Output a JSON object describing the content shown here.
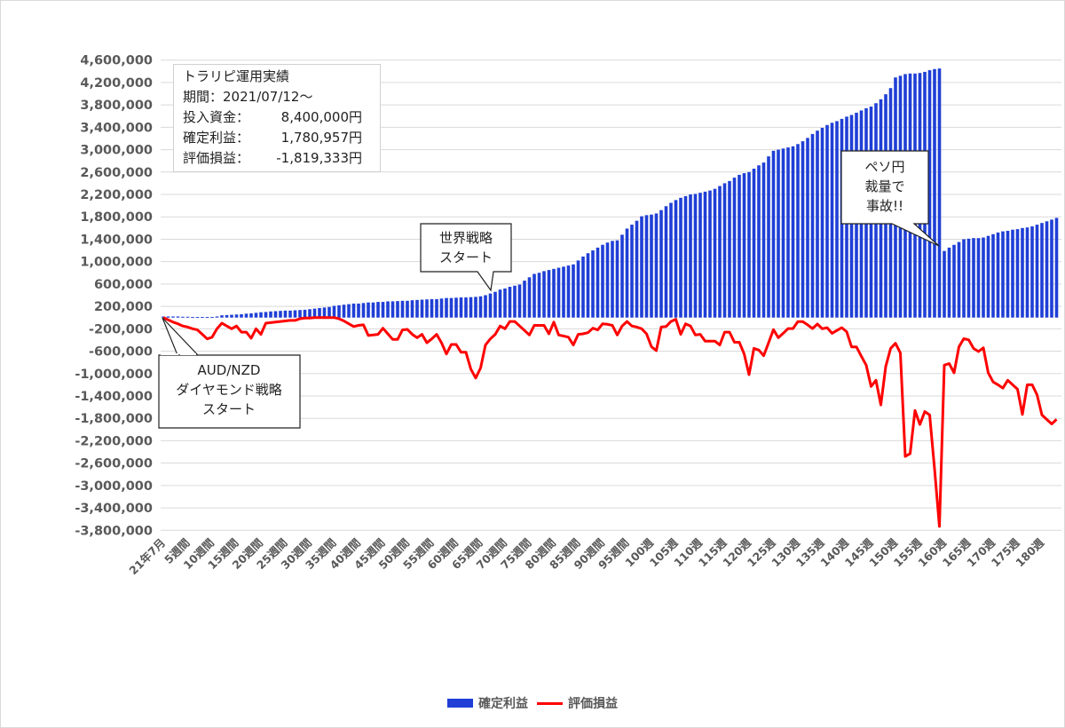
{
  "info_box": {
    "title": "トラリピ運用実績",
    "period_label": "期間：",
    "period_value": "2021/07/12～",
    "rows": [
      {
        "label": "投入資金：",
        "value": "8,400,000円"
      },
      {
        "label": "確定利益：",
        "value": "1,780,957円"
      },
      {
        "label": "評価損益：",
        "value": "-1,819,333円"
      }
    ]
  },
  "annotations": [
    {
      "lines": [
        "AUD/NZD",
        "ダイヤモンド戦略",
        "スタート"
      ]
    },
    {
      "lines": [
        "世界戦略",
        "スタート"
      ]
    },
    {
      "lines": [
        "ペソ円",
        "裁量で",
        "事故!!"
      ]
    }
  ],
  "colors": {
    "confirmed": "#1f3fd6",
    "unrealized": "#ff0000",
    "grid": "#d9d9d9"
  },
  "chart_data": {
    "type": "bar+line",
    "title": "",
    "xlabel": "",
    "ylabel": "",
    "ylim": [
      -3800000,
      4600000
    ],
    "y_ticks": [
      "4,600,000",
      "4,200,000",
      "3,800,000",
      "3,400,000",
      "3,000,000",
      "2,600,000",
      "2,200,000",
      "1,800,000",
      "1,400,000",
      "1,000,000",
      "600,000",
      "200,000",
      "-200,000",
      "-600,000",
      "-1,000,000",
      "-1,400,000",
      "-1,800,000",
      "-2,200,000",
      "-2,600,000",
      "-3,000,000",
      "-3,400,000",
      "-3,800,000"
    ],
    "y_tick_values": [
      4600000,
      4200000,
      3800000,
      3400000,
      3000000,
      2600000,
      2200000,
      1800000,
      1400000,
      1000000,
      600000,
      200000,
      -200000,
      -600000,
      -1000000,
      -1400000,
      -1800000,
      -2200000,
      -2600000,
      -3000000,
      -3400000,
      -3800000
    ],
    "grid": true,
    "x_tick_labels": [
      "21年7月",
      "5週間",
      "10週間",
      "15週間",
      "20週間",
      "25週間",
      "30週間",
      "35週間",
      "40週間",
      "45週間",
      "50週間",
      "55週間",
      "60週間",
      "65週間",
      "70週間",
      "75週間",
      "80週間",
      "85週間",
      "90週間",
      "95週間",
      "100週",
      "105週",
      "110週",
      "115週",
      "120週",
      "125週",
      "130週",
      "135週",
      "140週",
      "145週",
      "150週",
      "155週",
      "160週",
      "165週",
      "170週",
      "175週",
      "180週"
    ],
    "x_tick_every": 5,
    "legend_position": "bottom",
    "series": [
      {
        "name": "確定利益",
        "type": "bar",
        "values": [
          20000,
          20000,
          20000,
          20000,
          15000,
          15000,
          10000,
          10000,
          10000,
          10000,
          10000,
          20000,
          40000,
          45000,
          50000,
          55000,
          60000,
          70000,
          75000,
          85000,
          95000,
          100000,
          110000,
          115000,
          120000,
          125000,
          125000,
          130000,
          135000,
          140000,
          150000,
          160000,
          170000,
          180000,
          190000,
          210000,
          220000,
          230000,
          240000,
          250000,
          250000,
          260000,
          270000,
          270000,
          280000,
          280000,
          290000,
          290000,
          295000,
          300000,
          300000,
          310000,
          315000,
          320000,
          325000,
          330000,
          330000,
          340000,
          350000,
          350000,
          355000,
          360000,
          360000,
          365000,
          370000,
          380000,
          400000,
          430000,
          460000,
          500000,
          520000,
          550000,
          570000,
          590000,
          660000,
          720000,
          780000,
          800000,
          830000,
          850000,
          870000,
          890000,
          910000,
          930000,
          950000,
          1020000,
          1090000,
          1150000,
          1200000,
          1250000,
          1300000,
          1340000,
          1370000,
          1380000,
          1480000,
          1590000,
          1660000,
          1730000,
          1810000,
          1830000,
          1840000,
          1860000,
          1920000,
          1990000,
          2050000,
          2100000,
          2140000,
          2170000,
          2200000,
          2210000,
          2230000,
          2250000,
          2270000,
          2300000,
          2350000,
          2400000,
          2440000,
          2500000,
          2550000,
          2580000,
          2600000,
          2660000,
          2720000,
          2770000,
          2880000,
          2980000,
          3000000,
          3020000,
          3040000,
          3060000,
          3100000,
          3150000,
          3210000,
          3280000,
          3340000,
          3390000,
          3440000,
          3480000,
          3510000,
          3550000,
          3590000,
          3620000,
          3660000,
          3700000,
          3740000,
          3770000,
          3830000,
          3900000,
          3990000,
          4100000,
          4290000,
          4320000,
          4350000,
          4360000,
          4360000,
          4370000,
          4390000,
          4420000,
          4440000,
          4450000,
          1190000,
          1250000,
          1300000,
          1350000,
          1400000,
          1410000,
          1420000,
          1420000,
          1430000,
          1460000,
          1490000,
          1520000,
          1540000,
          1550000,
          1570000,
          1580000,
          1600000,
          1610000,
          1630000,
          1660000,
          1690000,
          1720000,
          1750000,
          1780957
        ]
      },
      {
        "name": "評価損益",
        "type": "line",
        "values": [
          0,
          -40000,
          -80000,
          -110000,
          -150000,
          -170000,
          -200000,
          -220000,
          -300000,
          -380000,
          -350000,
          -200000,
          -100000,
          -150000,
          -200000,
          -150000,
          -260000,
          -260000,
          -370000,
          -200000,
          -300000,
          -100000,
          -90000,
          -80000,
          -70000,
          -60000,
          -50000,
          -50000,
          -20000,
          -10000,
          -10000,
          0,
          0,
          0,
          0,
          0,
          -20000,
          -60000,
          -110000,
          -160000,
          -140000,
          -130000,
          -320000,
          -310000,
          -300000,
          -190000,
          -290000,
          -390000,
          -390000,
          -220000,
          -210000,
          -300000,
          -360000,
          -300000,
          -450000,
          -380000,
          -300000,
          -450000,
          -650000,
          -480000,
          -480000,
          -620000,
          -620000,
          -920000,
          -1080000,
          -900000,
          -490000,
          -380000,
          -300000,
          -150000,
          -200000,
          -70000,
          -70000,
          -150000,
          -230000,
          -310000,
          -140000,
          -140000,
          -140000,
          -290000,
          -80000,
          -310000,
          -330000,
          -350000,
          -490000,
          -300000,
          -290000,
          -270000,
          -190000,
          -220000,
          -110000,
          -120000,
          -140000,
          -310000,
          -150000,
          -70000,
          -150000,
          -170000,
          -200000,
          -290000,
          -520000,
          -590000,
          -170000,
          -160000,
          -70000,
          -30000,
          -300000,
          -110000,
          -150000,
          -310000,
          -300000,
          -420000,
          -420000,
          -420000,
          -490000,
          -260000,
          -260000,
          -440000,
          -440000,
          -650000,
          -1020000,
          -550000,
          -580000,
          -680000,
          -450000,
          -215000,
          -360000,
          -280000,
          -197000,
          -197000,
          -72000,
          -72000,
          -130000,
          -197000,
          -116000,
          -200000,
          -181000,
          -280000,
          -230000,
          -181000,
          -252000,
          -523000,
          -523000,
          -690000,
          -850000,
          -1230000,
          -1120000,
          -1560000,
          -876000,
          -551000,
          -459000,
          -632000,
          -2480000,
          -2430000,
          -1660000,
          -1910000,
          -1680000,
          -1740000,
          -2700000,
          -3730000,
          -850000,
          -822000,
          -986000,
          -523000,
          -376000,
          -398000,
          -551000,
          -605000,
          -540000,
          -986000,
          -1150000,
          -1200000,
          -1260000,
          -1120000,
          -1200000,
          -1280000,
          -1730000,
          -1200000,
          -1200000,
          -1380000,
          -1740000,
          -1820000,
          -1900000,
          -1819333
        ]
      }
    ]
  }
}
